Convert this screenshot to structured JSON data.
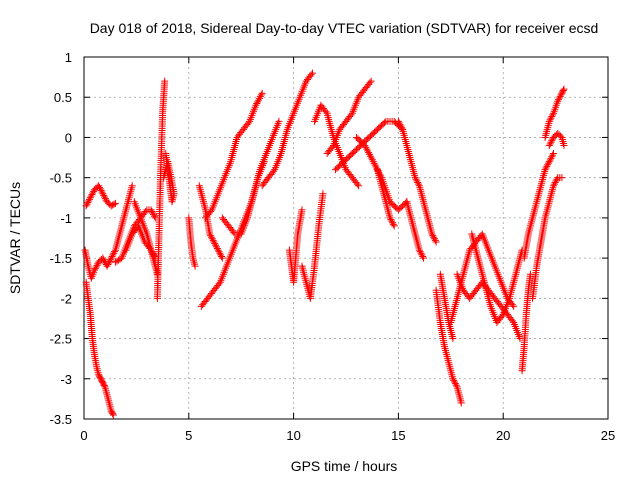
{
  "chart_data": {
    "type": "scatter",
    "title": "Day 018 of 2018, Sidereal Day-to-day VTEC variation (SDTVAR) for receiver ecsd",
    "xlabel": "GPS time / hours",
    "ylabel": "SDTVAR / TECUs",
    "xlim": [
      0,
      25
    ],
    "ylim": [
      -3.5,
      1
    ],
    "xticks": [
      0,
      5,
      10,
      15,
      20,
      25
    ],
    "xtick_labels": [
      "0",
      "5",
      "10",
      "15",
      "20",
      "25"
    ],
    "yticks": [
      -3.5,
      -3,
      -2.5,
      -2,
      -1.5,
      -1,
      -0.5,
      0,
      0.5,
      1
    ],
    "ytick_labels": [
      "-3.5",
      "-3",
      "-2.5",
      "-2",
      "-1.5",
      "-1",
      "-0.5",
      "0",
      "0.5",
      "1"
    ],
    "grid": true,
    "marker": "+",
    "color": "#ff0000",
    "series": [
      {
        "name": "SDTVAR",
        "tracks": [
          [
            [
              0.1,
              -0.85
            ],
            [
              0.3,
              -0.75
            ],
            [
              0.5,
              -0.65
            ],
            [
              0.7,
              -0.6
            ],
            [
              0.9,
              -0.7
            ],
            [
              1.1,
              -0.8
            ],
            [
              1.3,
              -0.85
            ],
            [
              1.5,
              -0.82
            ]
          ],
          [
            [
              0.05,
              -1.4
            ],
            [
              0.2,
              -1.6
            ],
            [
              0.35,
              -1.75
            ],
            [
              0.5,
              -1.65
            ],
            [
              0.7,
              -1.55
            ],
            [
              0.9,
              -1.5
            ],
            [
              1.1,
              -1.6
            ],
            [
              1.3,
              -1.5
            ],
            [
              1.5,
              -1.4
            ],
            [
              1.7,
              -1.2
            ],
            [
              1.9,
              -1.0
            ],
            [
              2.1,
              -0.8
            ],
            [
              2.3,
              -0.6
            ]
          ],
          [
            [
              0.1,
              -1.8
            ],
            [
              0.2,
              -2.0
            ],
            [
              0.3,
              -2.2
            ],
            [
              0.4,
              -2.5
            ],
            [
              0.5,
              -2.7
            ],
            [
              0.6,
              -2.85
            ],
            [
              0.7,
              -2.95
            ],
            [
              0.8,
              -3.0
            ],
            [
              0.9,
              -3.05
            ],
            [
              1.0,
              -3.1
            ],
            [
              1.1,
              -3.2
            ],
            [
              1.2,
              -3.3
            ],
            [
              1.3,
              -3.4
            ],
            [
              1.4,
              -3.45
            ]
          ],
          [
            [
              1.5,
              -1.55
            ],
            [
              1.8,
              -1.5
            ],
            [
              2.1,
              -1.3
            ],
            [
              2.4,
              -1.1
            ],
            [
              2.7,
              -1.0
            ],
            [
              3.0,
              -0.9
            ],
            [
              3.2,
              -0.9
            ],
            [
              3.4,
              -1.0
            ]
          ],
          [
            [
              2.0,
              -1.4
            ],
            [
              2.3,
              -1.2
            ],
            [
              2.6,
              -1.1
            ],
            [
              2.9,
              -1.3
            ],
            [
              3.2,
              -1.4
            ],
            [
              3.4,
              -1.5
            ]
          ],
          [
            [
              2.4,
              -0.8
            ],
            [
              2.7,
              -1.0
            ],
            [
              3.0,
              -1.2
            ],
            [
              3.3,
              -1.5
            ],
            [
              3.5,
              -1.7
            ]
          ],
          [
            [
              3.5,
              -2.0
            ],
            [
              3.55,
              -1.5
            ],
            [
              3.6,
              -1.0
            ],
            [
              3.65,
              -0.5
            ],
            [
              3.7,
              -0.1
            ],
            [
              3.75,
              0.3
            ],
            [
              3.8,
              0.5
            ],
            [
              3.85,
              0.7
            ]
          ],
          [
            [
              3.9,
              -0.2
            ],
            [
              4.0,
              -0.4
            ],
            [
              4.1,
              -0.6
            ],
            [
              4.2,
              -0.8
            ],
            [
              4.3,
              -0.7
            ],
            [
              4.0,
              -0.3
            ],
            [
              3.8,
              -0.5
            ]
          ],
          [
            [
              5.0,
              -1.0
            ],
            [
              5.1,
              -1.3
            ],
            [
              5.2,
              -1.5
            ],
            [
              5.3,
              -1.6
            ]
          ],
          [
            [
              5.5,
              -0.6
            ],
            [
              5.8,
              -0.9
            ],
            [
              6.0,
              -1.2
            ],
            [
              6.2,
              -1.3
            ],
            [
              6.4,
              -1.4
            ],
            [
              6.6,
              -1.5
            ]
          ],
          [
            [
              5.6,
              -2.1
            ],
            [
              5.9,
              -2.0
            ],
            [
              6.2,
              -1.9
            ],
            [
              6.5,
              -1.8
            ],
            [
              6.8,
              -1.6
            ],
            [
              7.1,
              -1.4
            ],
            [
              7.4,
              -1.2
            ],
            [
              7.7,
              -1.0
            ],
            [
              8.0,
              -0.8
            ],
            [
              8.3,
              -0.5
            ],
            [
              8.6,
              -0.3
            ]
          ],
          [
            [
              5.8,
              -1.0
            ],
            [
              6.1,
              -0.9
            ],
            [
              6.4,
              -0.7
            ],
            [
              6.7,
              -0.5
            ],
            [
              7.0,
              -0.3
            ],
            [
              7.3,
              0.0
            ],
            [
              7.6,
              0.1
            ],
            [
              7.9,
              0.2
            ],
            [
              8.2,
              0.4
            ],
            [
              8.5,
              0.55
            ]
          ],
          [
            [
              6.6,
              -1.0
            ],
            [
              6.9,
              -1.1
            ],
            [
              7.2,
              -1.2
            ],
            [
              7.5,
              -1.2
            ],
            [
              7.8,
              -1.0
            ],
            [
              8.1,
              -0.7
            ],
            [
              8.4,
              -0.4
            ],
            [
              8.7,
              -0.2
            ],
            [
              9.0,
              0.0
            ],
            [
              9.3,
              0.2
            ]
          ],
          [
            [
              8.5,
              -0.6
            ],
            [
              8.8,
              -0.5
            ],
            [
              9.1,
              -0.4
            ],
            [
              9.4,
              -0.2
            ],
            [
              9.7,
              0.1
            ],
            [
              10.0,
              0.3
            ],
            [
              10.3,
              0.5
            ],
            [
              10.6,
              0.7
            ],
            [
              10.9,
              0.8
            ]
          ],
          [
            [
              9.8,
              -1.4
            ],
            [
              9.9,
              -1.6
            ],
            [
              10.0,
              -1.8
            ],
            [
              10.1,
              -1.5
            ],
            [
              10.2,
              -1.2
            ],
            [
              10.4,
              -0.9
            ]
          ],
          [
            [
              10.4,
              -1.6
            ],
            [
              10.6,
              -1.8
            ],
            [
              10.8,
              -2.0
            ],
            [
              11.0,
              -1.6
            ],
            [
              11.2,
              -1.1
            ],
            [
              11.4,
              -0.7
            ]
          ],
          [
            [
              11.0,
              0.2
            ],
            [
              11.3,
              0.4
            ],
            [
              11.6,
              0.3
            ],
            [
              11.9,
              0.0
            ],
            [
              12.2,
              -0.2
            ],
            [
              12.5,
              -0.4
            ],
            [
              12.8,
              -0.5
            ],
            [
              13.1,
              -0.6
            ]
          ],
          [
            [
              11.6,
              -0.2
            ],
            [
              11.9,
              -0.1
            ],
            [
              12.2,
              0.1
            ],
            [
              12.5,
              0.2
            ],
            [
              12.8,
              0.3
            ],
            [
              13.1,
              0.5
            ],
            [
              13.4,
              0.6
            ],
            [
              13.7,
              0.7
            ]
          ],
          [
            [
              12.0,
              -0.4
            ],
            [
              12.4,
              -0.3
            ],
            [
              12.8,
              -0.2
            ],
            [
              13.2,
              -0.1
            ],
            [
              13.6,
              0.0
            ],
            [
              14.0,
              0.1
            ],
            [
              14.4,
              0.2
            ],
            [
              14.8,
              0.2
            ],
            [
              15.2,
              0.1
            ]
          ],
          [
            [
              13.0,
              0.0
            ],
            [
              13.4,
              -0.1
            ],
            [
              13.8,
              -0.3
            ],
            [
              14.2,
              -0.5
            ],
            [
              14.6,
              -0.8
            ],
            [
              15.0,
              -0.9
            ],
            [
              15.4,
              -0.8
            ]
          ],
          [
            [
              14.0,
              -0.4
            ],
            [
              14.2,
              -0.6
            ],
            [
              14.4,
              -0.8
            ],
            [
              14.6,
              -1.0
            ],
            [
              14.8,
              -1.1
            ]
          ],
          [
            [
              15.0,
              0.2
            ],
            [
              15.2,
              0.1
            ],
            [
              15.4,
              -0.1
            ],
            [
              15.6,
              -0.3
            ],
            [
              15.8,
              -0.5
            ],
            [
              16.0,
              -0.6
            ],
            [
              16.2,
              -0.8
            ],
            [
              16.4,
              -1.0
            ],
            [
              16.6,
              -1.2
            ],
            [
              16.8,
              -1.3
            ]
          ],
          [
            [
              15.4,
              -0.8
            ],
            [
              15.6,
              -1.0
            ],
            [
              15.8,
              -1.2
            ],
            [
              16.0,
              -1.4
            ],
            [
              16.2,
              -1.5
            ]
          ],
          [
            [
              16.8,
              -1.9
            ],
            [
              17.0,
              -2.3
            ],
            [
              17.2,
              -2.6
            ],
            [
              17.4,
              -2.8
            ],
            [
              17.6,
              -3.0
            ],
            [
              17.8,
              -3.1
            ],
            [
              18.0,
              -3.3
            ]
          ],
          [
            [
              17.0,
              -1.7
            ],
            [
              17.2,
              -2.0
            ],
            [
              17.4,
              -2.3
            ],
            [
              17.6,
              -2.5
            ]
          ],
          [
            [
              17.5,
              -2.3
            ],
            [
              17.8,
              -2.0
            ],
            [
              18.1,
              -1.7
            ],
            [
              18.4,
              -1.4
            ],
            [
              18.7,
              -1.3
            ],
            [
              19.0,
              -1.2
            ],
            [
              19.3,
              -1.4
            ],
            [
              19.6,
              -1.6
            ],
            [
              19.9,
              -1.8
            ],
            [
              20.2,
              -2.0
            ],
            [
              20.5,
              -2.1
            ]
          ],
          [
            [
              17.8,
              -1.7
            ],
            [
              18.1,
              -1.9
            ],
            [
              18.4,
              -2.0
            ],
            [
              18.7,
              -1.9
            ],
            [
              19.0,
              -1.8
            ],
            [
              19.3,
              -1.9
            ],
            [
              19.6,
              -2.0
            ],
            [
              19.9,
              -2.1
            ],
            [
              20.2,
              -2.2
            ],
            [
              20.5,
              -2.3
            ],
            [
              20.8,
              -2.5
            ]
          ],
          [
            [
              18.5,
              -1.2
            ],
            [
              18.8,
              -1.5
            ],
            [
              19.1,
              -1.8
            ],
            [
              19.4,
              -2.1
            ],
            [
              19.7,
              -2.3
            ],
            [
              20.0,
              -2.2
            ],
            [
              20.3,
              -2.0
            ],
            [
              20.6,
              -1.7
            ],
            [
              20.9,
              -1.4
            ]
          ],
          [
            [
              20.9,
              -2.9
            ],
            [
              21.0,
              -2.6
            ],
            [
              21.1,
              -2.2
            ],
            [
              21.2,
              -1.9
            ],
            [
              21.3,
              -1.7
            ]
          ],
          [
            [
              21.0,
              -1.5
            ],
            [
              21.2,
              -1.2
            ],
            [
              21.4,
              -1.0
            ],
            [
              21.6,
              -0.8
            ],
            [
              21.8,
              -0.6
            ],
            [
              22.0,
              -0.4
            ],
            [
              22.2,
              -0.3
            ],
            [
              22.4,
              -0.2
            ]
          ],
          [
            [
              21.4,
              -2.0
            ],
            [
              21.6,
              -1.6
            ],
            [
              21.8,
              -1.3
            ],
            [
              22.0,
              -1.0
            ],
            [
              22.2,
              -0.8
            ],
            [
              22.4,
              -0.6
            ],
            [
              22.6,
              -0.5
            ],
            [
              22.8,
              -0.5
            ]
          ],
          [
            [
              22.0,
              0.0
            ],
            [
              22.2,
              0.2
            ],
            [
              22.4,
              0.3
            ],
            [
              22.6,
              0.45
            ],
            [
              22.8,
              0.55
            ],
            [
              22.9,
              0.6
            ]
          ],
          [
            [
              22.2,
              -0.1
            ],
            [
              22.4,
              0.0
            ],
            [
              22.6,
              0.05
            ],
            [
              22.8,
              0.0
            ],
            [
              22.9,
              -0.1
            ]
          ]
        ]
      }
    ]
  }
}
